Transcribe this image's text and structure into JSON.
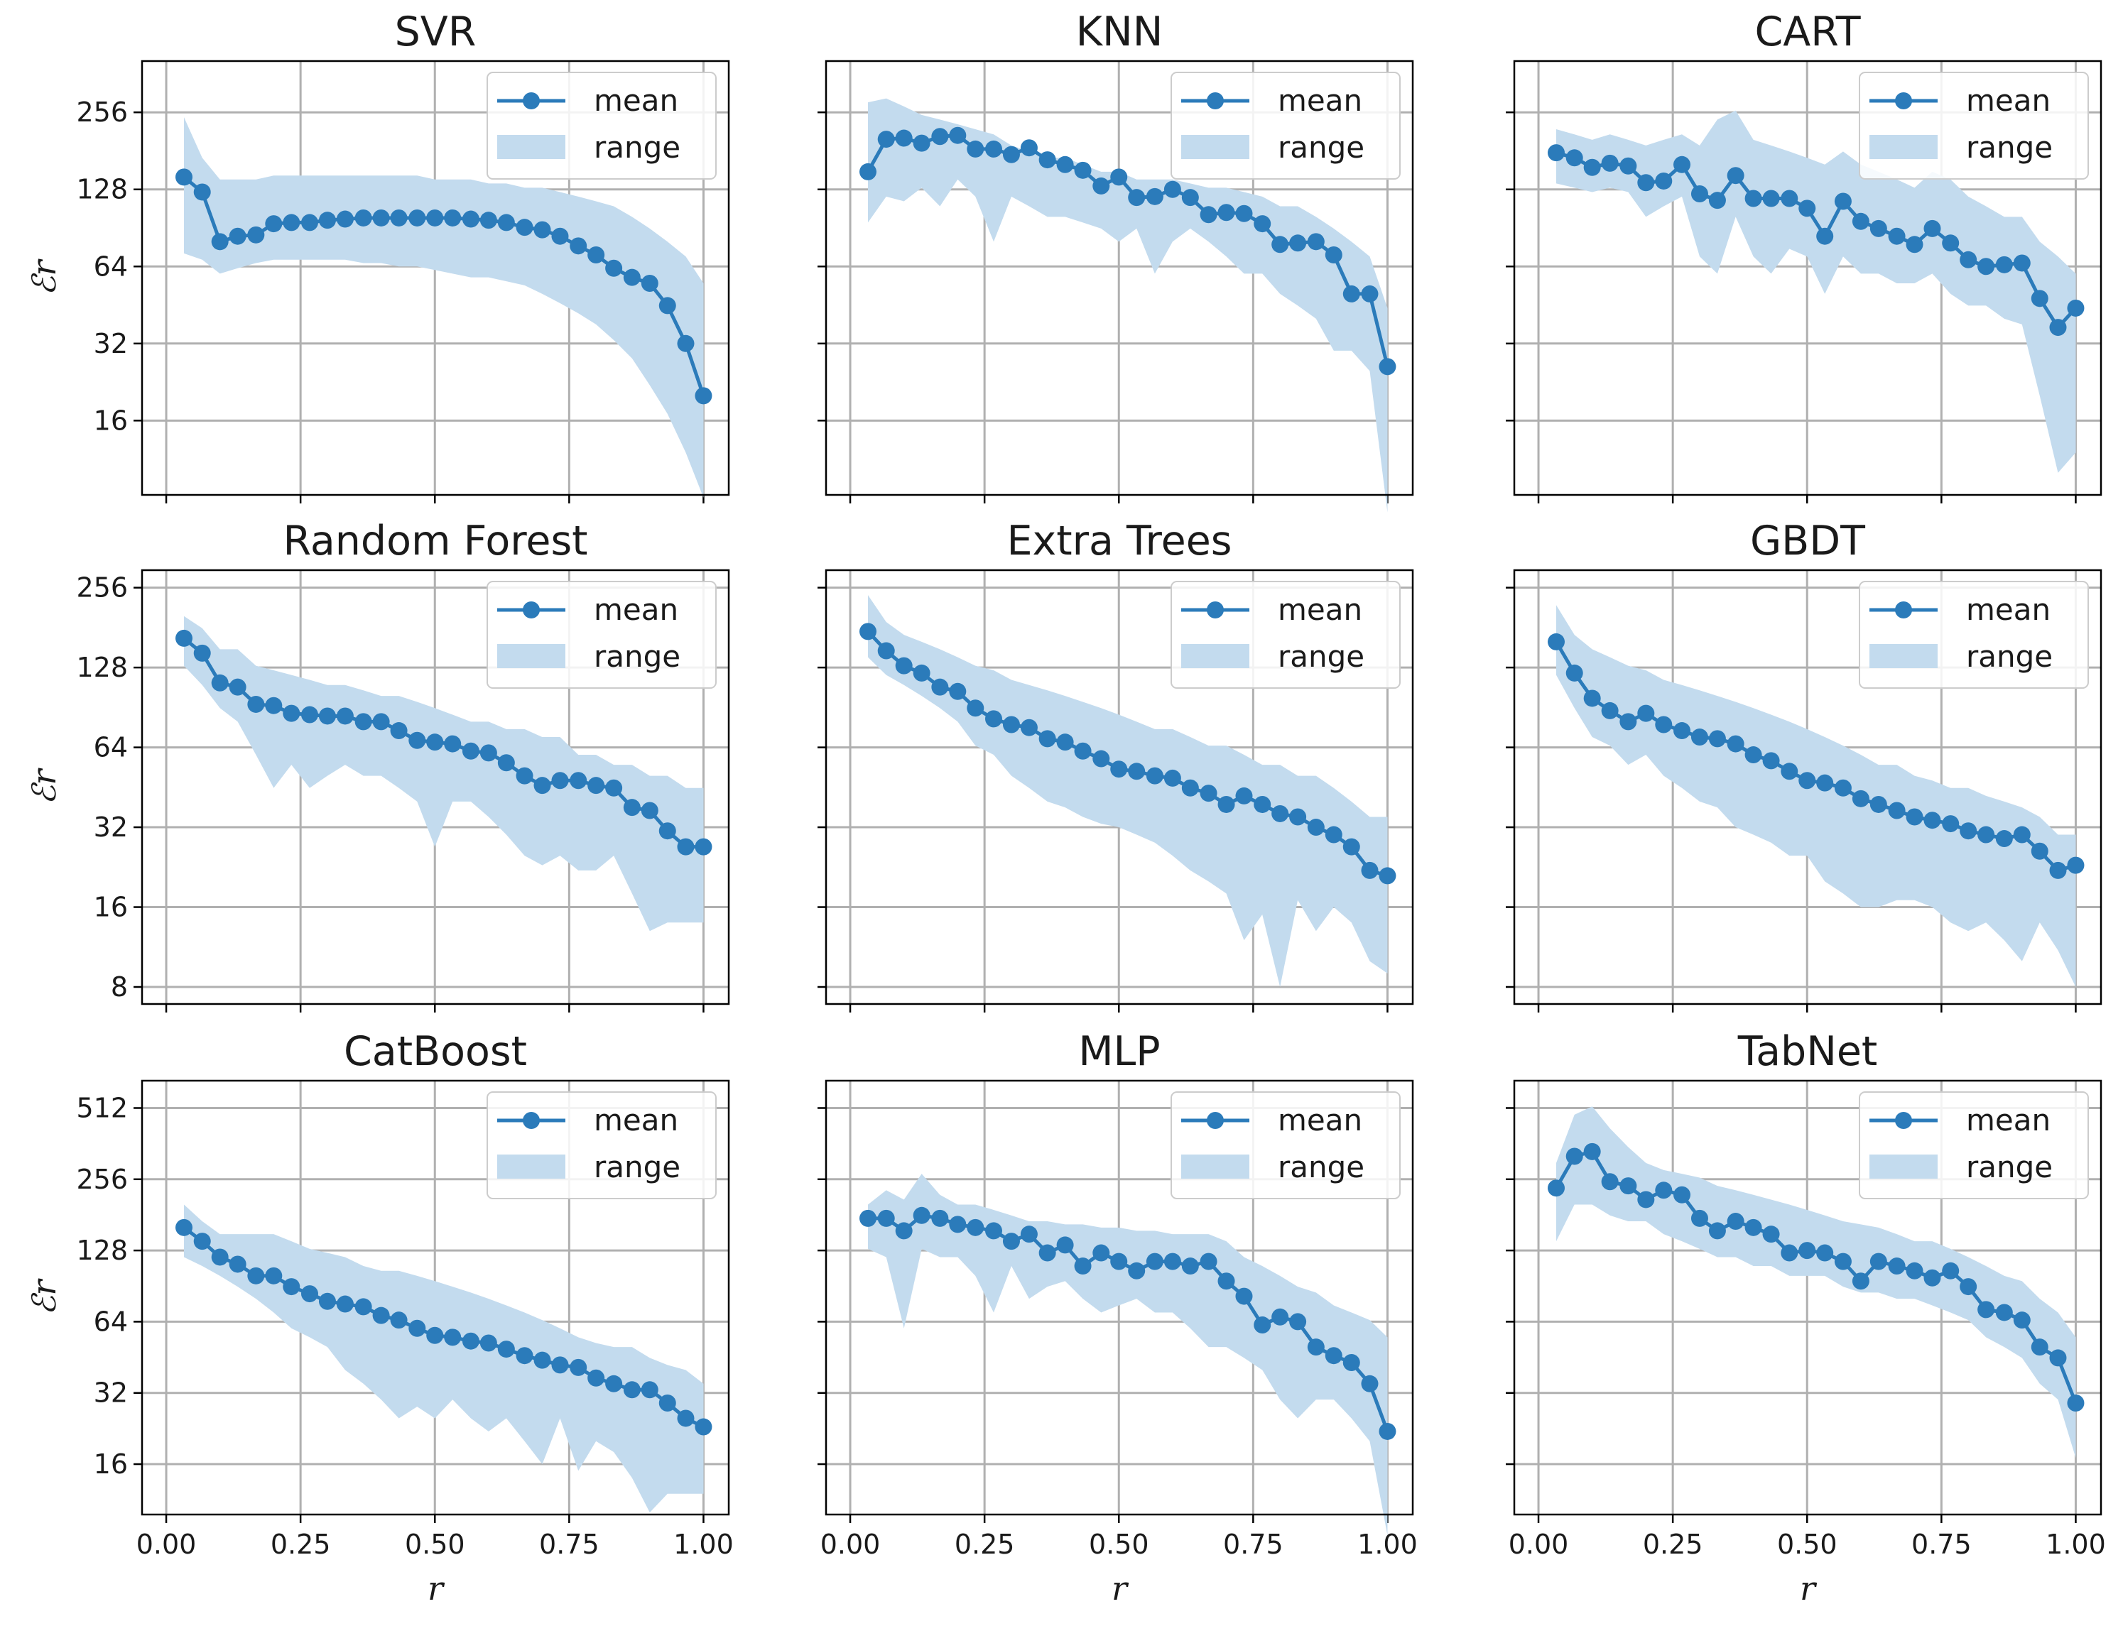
{
  "chart_data": {
    "type": "line",
    "layout": "3x3 grid",
    "xlabel": "r",
    "ylabel": "ℰr",
    "yscale": "log2",
    "xlim": [
      -0.045,
      1.047
    ],
    "xticks": [
      0.0,
      0.25,
      0.5,
      0.75,
      1.0
    ],
    "xtick_labels": [
      "0.00",
      "0.25",
      "0.50",
      "0.75",
      "1.00"
    ],
    "legend": {
      "placement": "top-right",
      "entries": [
        "mean",
        "range"
      ]
    },
    "grid": true,
    "colors": {
      "mean": "#2b7bba",
      "range": "#c3dbee",
      "grid": "#b0b0b0"
    },
    "rows": [
      {
        "ylim": [
          8.2,
          406
        ],
        "yticks": [
          16,
          32,
          64,
          128,
          256
        ]
      },
      {
        "ylim": [
          6.9,
          298
        ],
        "yticks": [
          8,
          16,
          32,
          64,
          128,
          256
        ]
      },
      {
        "ylim": [
          9.8,
          668
        ],
        "yticks": [
          16,
          32,
          64,
          128,
          256,
          512
        ]
      }
    ],
    "x": [
      0.033,
      0.067,
      0.1,
      0.133,
      0.167,
      0.2,
      0.233,
      0.267,
      0.3,
      0.333,
      0.367,
      0.4,
      0.433,
      0.467,
      0.5,
      0.533,
      0.567,
      0.6,
      0.633,
      0.667,
      0.7,
      0.733,
      0.767,
      0.8,
      0.833,
      0.867,
      0.9,
      0.933,
      0.967,
      1.0
    ],
    "panels": [
      {
        "title": "SVR",
        "mean": [
          143,
          125,
          80,
          84,
          85,
          94,
          95,
          95,
          97,
          98,
          99,
          99,
          99,
          99,
          99,
          99,
          98,
          97,
          95,
          91,
          89,
          84,
          77,
          71,
          63,
          58,
          55,
          45,
          32,
          20
        ],
        "high": [
          245,
          170,
          140,
          140,
          140,
          145,
          145,
          145,
          145,
          145,
          145,
          145,
          145,
          145,
          140,
          140,
          140,
          135,
          135,
          130,
          130,
          125,
          120,
          115,
          110,
          100,
          90,
          80,
          70,
          55
        ],
        "low": [
          72,
          68,
          60,
          63,
          66,
          68,
          68,
          68,
          68,
          68,
          66,
          66,
          64,
          64,
          62,
          60,
          58,
          58,
          56,
          54,
          50,
          46,
          42,
          38,
          33,
          28,
          22,
          17,
          12,
          8
        ]
      },
      {
        "title": "KNN",
        "mean": [
          150,
          201,
          203,
          194,
          206,
          208,
          184,
          184,
          175,
          186,
          167,
          160,
          152,
          132,
          143,
          119,
          120,
          128,
          119,
          102,
          104,
          103,
          94,
          78,
          79,
          80,
          71,
          50,
          50,
          26
        ],
        "high": [
          280,
          290,
          270,
          250,
          240,
          230,
          220,
          210,
          190,
          180,
          170,
          170,
          160,
          150,
          150,
          140,
          140,
          140,
          135,
          130,
          130,
          125,
          120,
          110,
          110,
          100,
          90,
          80,
          70,
          44
        ],
        "low": [
          95,
          120,
          115,
          130,
          110,
          140,
          120,
          80,
          120,
          110,
          100,
          100,
          95,
          90,
          80,
          90,
          60,
          80,
          90,
          80,
          70,
          60,
          60,
          50,
          45,
          40,
          30,
          30,
          25,
          7
        ]
      },
      {
        "title": "CART",
        "mean": [
          178,
          170,
          156,
          162,
          158,
          136,
          138,
          160,
          123,
          116,
          145,
          118,
          118,
          118,
          108,
          84,
          115,
          96,
          90,
          84,
          78,
          90,
          79,
          68,
          64,
          65,
          66,
          48,
          37,
          44
        ],
        "high": [
          220,
          210,
          200,
          210,
          200,
          190,
          200,
          210,
          190,
          240,
          260,
          200,
          190,
          180,
          170,
          160,
          180,
          160,
          150,
          140,
          130,
          150,
          140,
          120,
          110,
          100,
          100,
          80,
          70,
          60
        ],
        "low": [
          135,
          130,
          125,
          130,
          125,
          100,
          110,
          120,
          70,
          60,
          100,
          70,
          60,
          75,
          70,
          50,
          70,
          60,
          60,
          55,
          55,
          60,
          50,
          45,
          45,
          40,
          38,
          20,
          10,
          12
        ]
      },
      {
        "title": "Random Forest",
        "mean": [
          165,
          145,
          112,
          108,
          93,
          92,
          86,
          85,
          84,
          84,
          80,
          80,
          74,
          68,
          67,
          66,
          62,
          61,
          56,
          50,
          46,
          48,
          48,
          46,
          45,
          38,
          37,
          31,
          27,
          27
        ],
        "high": [
          200,
          180,
          150,
          150,
          130,
          125,
          120,
          115,
          110,
          110,
          105,
          100,
          100,
          95,
          90,
          85,
          80,
          80,
          75,
          75,
          70,
          70,
          60,
          60,
          55,
          55,
          50,
          50,
          45,
          45
        ],
        "low": [
          130,
          110,
          90,
          80,
          60,
          45,
          55,
          45,
          50,
          55,
          50,
          50,
          45,
          40,
          27,
          40,
          40,
          35,
          30,
          25,
          23,
          25,
          22,
          22,
          25,
          18,
          13,
          14,
          14,
          14
        ]
      },
      {
        "title": "Extra Trees",
        "mean": [
          175,
          148,
          130,
          122,
          108,
          104,
          90,
          82,
          78,
          76,
          69,
          67,
          62,
          58,
          53,
          52,
          50,
          49,
          45,
          43,
          39,
          42,
          39,
          36,
          35,
          32,
          30,
          27,
          22,
          21
        ],
        "high": [
          240,
          190,
          170,
          160,
          150,
          140,
          130,
          125,
          115,
          110,
          105,
          100,
          95,
          90,
          85,
          80,
          75,
          75,
          70,
          65,
          65,
          60,
          55,
          55,
          50,
          50,
          45,
          40,
          35,
          35
        ],
        "low": [
          140,
          120,
          110,
          100,
          90,
          80,
          65,
          60,
          50,
          45,
          40,
          38,
          35,
          33,
          32,
          30,
          28,
          25,
          22,
          20,
          18,
          12,
          15,
          8,
          17,
          13,
          16,
          14,
          10,
          9
        ]
      },
      {
        "title": "GBDT",
        "mean": [
          160,
          122,
          98,
          88,
          80,
          86,
          78,
          74,
          70,
          69,
          66,
          60,
          57,
          52,
          48,
          47,
          45,
          41,
          39,
          37,
          35,
          34,
          33,
          31,
          30,
          29,
          30,
          26,
          22,
          23
        ],
        "high": [
          220,
          170,
          150,
          140,
          130,
          125,
          115,
          110,
          105,
          100,
          95,
          90,
          85,
          80,
          75,
          70,
          65,
          60,
          55,
          55,
          50,
          48,
          45,
          45,
          42,
          40,
          38,
          35,
          30,
          30
        ],
        "low": [
          120,
          90,
          70,
          65,
          55,
          60,
          50,
          45,
          40,
          38,
          32,
          30,
          28,
          25,
          25,
          20,
          18,
          16,
          16,
          17,
          17,
          16,
          14,
          13,
          14,
          12,
          10,
          14,
          11,
          8
        ]
      },
      {
        "title": "CatBoost",
        "mean": [
          160,
          140,
          120,
          112,
          100,
          100,
          90,
          84,
          78,
          76,
          74,
          68,
          65,
          60,
          56,
          55,
          53,
          52,
          49,
          46,
          44,
          42,
          41,
          37,
          35,
          33,
          33,
          29,
          25,
          23
        ],
        "high": [
          200,
          170,
          150,
          150,
          150,
          150,
          140,
          130,
          125,
          120,
          110,
          105,
          105,
          100,
          95,
          90,
          85,
          80,
          75,
          70,
          65,
          60,
          55,
          52,
          50,
          50,
          45,
          42,
          40,
          35
        ],
        "low": [
          120,
          110,
          100,
          90,
          80,
          70,
          60,
          55,
          50,
          40,
          35,
          30,
          25,
          28,
          25,
          30,
          25,
          22,
          25,
          20,
          16,
          25,
          15,
          20,
          18,
          14,
          10,
          12,
          12,
          12
        ]
      },
      {
        "title": "MLP",
        "mean": [
          175,
          175,
          155,
          180,
          175,
          165,
          160,
          155,
          140,
          150,
          125,
          135,
          110,
          125,
          115,
          105,
          115,
          115,
          110,
          115,
          95,
          82,
          62,
          67,
          64,
          50,
          46,
          43,
          35,
          22
        ],
        "high": [
          200,
          230,
          210,
          270,
          220,
          200,
          200,
          190,
          180,
          170,
          170,
          165,
          165,
          160,
          160,
          155,
          155,
          150,
          150,
          150,
          140,
          120,
          110,
          100,
          90,
          85,
          75,
          70,
          65,
          55
        ],
        "low": [
          130,
          120,
          60,
          130,
          120,
          120,
          100,
          70,
          110,
          80,
          90,
          95,
          80,
          70,
          75,
          80,
          70,
          70,
          60,
          50,
          50,
          45,
          40,
          30,
          25,
          30,
          30,
          25,
          20,
          8
        ]
      },
      {
        "title": "TabNet",
        "mean": [
          235,
          320,
          335,
          250,
          240,
          210,
          230,
          220,
          175,
          155,
          170,
          160,
          150,
          125,
          128,
          125,
          115,
          95,
          115,
          110,
          105,
          98,
          105,
          90,
          72,
          70,
          65,
          50,
          45,
          29
        ],
        "high": [
          300,
          480,
          520,
          420,
          350,
          300,
          280,
          270,
          260,
          240,
          230,
          220,
          210,
          200,
          190,
          180,
          170,
          165,
          160,
          150,
          140,
          140,
          130,
          120,
          110,
          100,
          95,
          80,
          70,
          55
        ],
        "low": [
          140,
          200,
          200,
          180,
          170,
          170,
          150,
          140,
          130,
          120,
          120,
          110,
          110,
          100,
          100,
          100,
          90,
          85,
          85,
          80,
          80,
          75,
          70,
          65,
          55,
          50,
          45,
          35,
          30,
          17
        ]
      }
    ]
  }
}
